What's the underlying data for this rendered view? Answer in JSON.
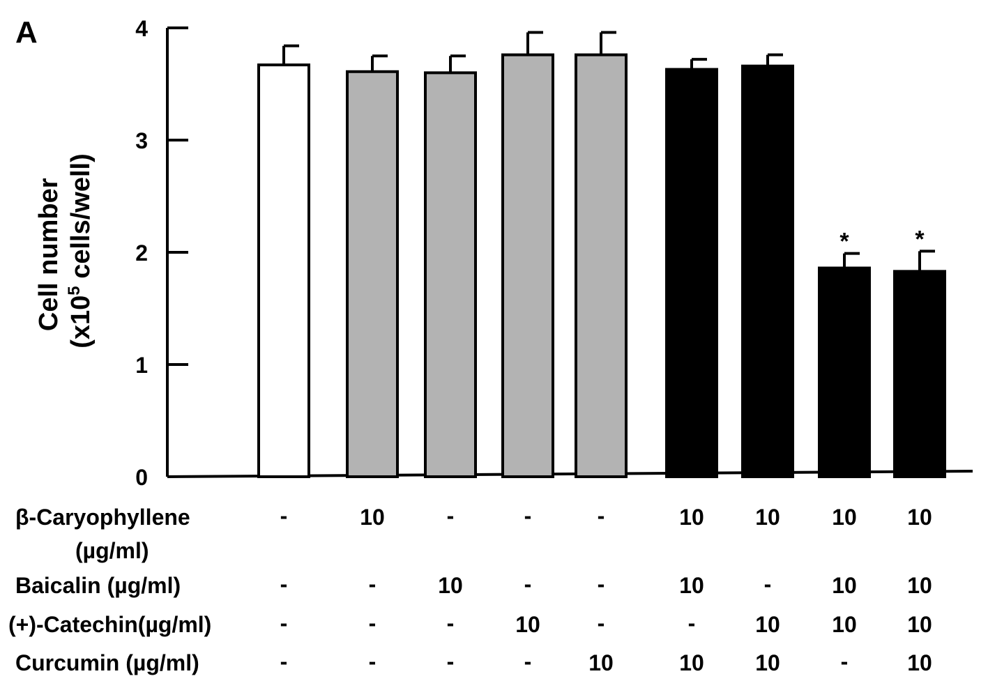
{
  "panel_label": "A",
  "chart_data": {
    "type": "bar",
    "ylabel_line1": "Cell number",
    "ylabel_line2_prefix": "(x10",
    "ylabel_line2_sup": "5",
    "ylabel_line2_suffix": " cells/well)",
    "ylim": [
      0,
      4
    ],
    "yticks": [
      "0",
      "1",
      "2",
      "3",
      "4"
    ],
    "grid": false,
    "bars": [
      {
        "value": 3.67,
        "error": 0.17,
        "fill": "#ffffff",
        "sig": ""
      },
      {
        "value": 3.61,
        "error": 0.14,
        "fill": "#b3b3b3",
        "sig": ""
      },
      {
        "value": 3.6,
        "error": 0.15,
        "fill": "#b3b3b3",
        "sig": ""
      },
      {
        "value": 3.76,
        "error": 0.2,
        "fill": "#b3b3b3",
        "sig": ""
      },
      {
        "value": 3.76,
        "error": 0.2,
        "fill": "#b3b3b3",
        "sig": ""
      },
      {
        "value": 3.63,
        "error": 0.09,
        "fill": "#000000",
        "sig": ""
      },
      {
        "value": 3.66,
        "error": 0.1,
        "fill": "#000000",
        "sig": ""
      },
      {
        "value": 1.86,
        "error": 0.13,
        "fill": "#000000",
        "sig": "*"
      },
      {
        "value": 1.83,
        "error": 0.18,
        "fill": "#000000",
        "sig": "*"
      }
    ],
    "treatment_table": [
      {
        "label": "β-Caryophyllene",
        "label_line2": "(µg/ml)",
        "values": [
          "-",
          "10",
          "-",
          "-",
          "-",
          "10",
          "10",
          "10",
          "10"
        ]
      },
      {
        "label": "Baicalin (µg/ml)",
        "label_line2": "",
        "values": [
          "-",
          "-",
          "10",
          "-",
          "-",
          "10",
          "-",
          "10",
          "10"
        ]
      },
      {
        "label": "(+)-Catechin(µg/ml)",
        "label_line2": "",
        "values": [
          "-",
          "-",
          "-",
          "10",
          "-",
          "-",
          "10",
          "10",
          "10"
        ]
      },
      {
        "label": "Curcumin (µg/ml)",
        "label_line2": "",
        "values": [
          "-",
          "-",
          "-",
          "-",
          "10",
          "10",
          "10",
          "-",
          "10"
        ]
      }
    ]
  }
}
